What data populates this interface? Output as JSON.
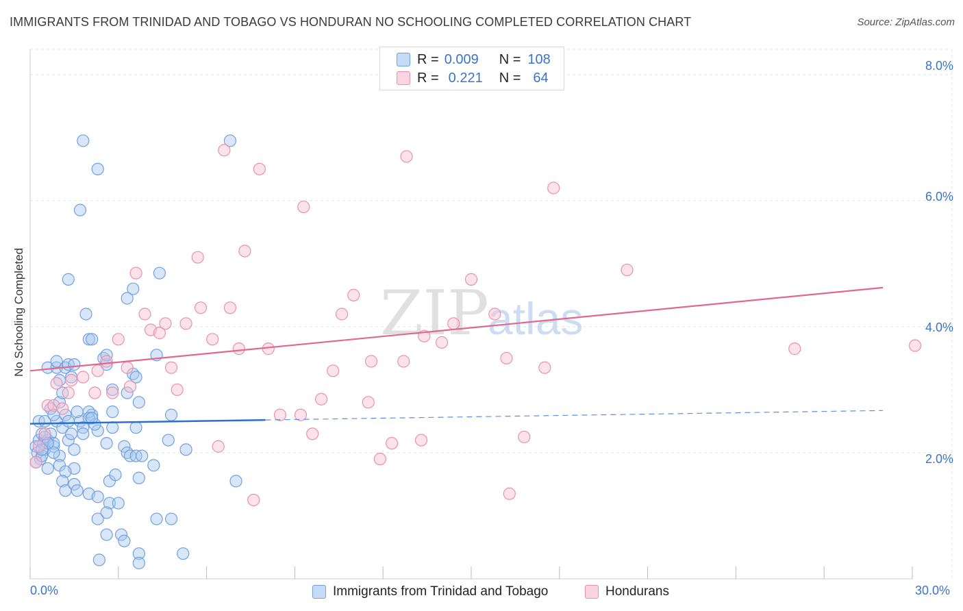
{
  "title": "IMMIGRANTS FROM TRINIDAD AND TOBAGO VS HONDURAN NO SCHOOLING COMPLETED CORRELATION CHART",
  "source": "Source: ZipAtlas.com",
  "watermark": {
    "zip": "ZIP",
    "atlas": "atlas"
  },
  "legend": {
    "rows": [
      {
        "r_label": "R =",
        "r_value": "0.009",
        "n_label": "N =",
        "n_value": "108",
        "color": "#a8c8f0",
        "stroke": "#6fa0e0"
      },
      {
        "r_label": "R =",
        "r_value": "0.221",
        "n_label": "N =",
        "n_value": "64",
        "color": "#f8c0d2",
        "stroke": "#e890b0"
      }
    ]
  },
  "bottom_legend": [
    {
      "label": "Immigrants from Trinidad and Tobago",
      "color": "#a8c8f0",
      "stroke": "#6fa0e0"
    },
    {
      "label": "Hondurans",
      "color": "#f8c0d2",
      "stroke": "#e890b0"
    }
  ],
  "axis_labels": {
    "x_min": "0.0%",
    "x_max": "30.0%",
    "y_ticks": [
      "2.0%",
      "4.0%",
      "6.0%",
      "8.0%"
    ]
  },
  "chart_data": {
    "type": "scatter",
    "title": "IMMIGRANTS FROM TRINIDAD AND TOBAGO VS HONDURAN NO SCHOOLING COMPLETED CORRELATION CHART",
    "xlabel": "",
    "ylabel": "No Schooling Completed",
    "xlim": [
      0,
      30
    ],
    "ylim": [
      0,
      8.4
    ],
    "x_unit": "%",
    "y_unit": "%",
    "grid": true,
    "legend_position": "top-center",
    "series": [
      {
        "name": "Immigrants from Trinidad and Tobago",
        "color": "#6fa0e0",
        "fill": "#a8c8f0",
        "trend": {
          "x": [
            0.0,
            8.0
          ],
          "y": [
            2.46,
            2.52
          ],
          "dashed_extension": {
            "x": [
              8.0,
              29.0
            ],
            "y": [
              2.52,
              2.67
            ]
          }
        },
        "points": [
          [
            0.2,
            2.1
          ],
          [
            0.25,
            2.0
          ],
          [
            0.3,
            2.2
          ],
          [
            0.35,
            1.9
          ],
          [
            0.4,
            2.3
          ],
          [
            0.45,
            2.15
          ],
          [
            0.5,
            2.05
          ],
          [
            0.3,
            2.5
          ],
          [
            0.5,
            2.5
          ],
          [
            0.6,
            2.2
          ],
          [
            0.7,
            2.3
          ],
          [
            0.8,
            2.1
          ],
          [
            0.9,
            2.5
          ],
          [
            0.7,
            2.7
          ],
          [
            0.8,
            2.6
          ],
          [
            1.0,
            2.8
          ],
          [
            1.1,
            2.4
          ],
          [
            1.2,
            2.6
          ],
          [
            1.3,
            2.5
          ],
          [
            0.6,
            3.35
          ],
          [
            0.9,
            3.35
          ],
          [
            0.9,
            3.45
          ],
          [
            1.2,
            3.35
          ],
          [
            1.3,
            3.4
          ],
          [
            1.5,
            3.4
          ],
          [
            1.4,
            3.2
          ],
          [
            1.0,
            3.15
          ],
          [
            1.1,
            2.95
          ],
          [
            0.8,
            2.15
          ],
          [
            1.3,
            2.2
          ],
          [
            1.5,
            2.05
          ],
          [
            1.0,
            1.95
          ],
          [
            0.6,
            1.75
          ],
          [
            1.0,
            1.8
          ],
          [
            1.5,
            1.75
          ],
          [
            1.2,
            1.7
          ],
          [
            1.1,
            1.55
          ],
          [
            1.2,
            1.4
          ],
          [
            1.5,
            1.5
          ],
          [
            1.6,
            1.4
          ],
          [
            2.0,
            1.35
          ],
          [
            2.3,
            1.3
          ],
          [
            2.3,
            2.35
          ],
          [
            2.1,
            2.6
          ],
          [
            2.0,
            2.65
          ],
          [
            2.2,
            2.45
          ],
          [
            1.7,
            2.5
          ],
          [
            1.8,
            2.4
          ],
          [
            1.8,
            2.3
          ],
          [
            2.0,
            2.55
          ],
          [
            2.6,
            2.15
          ],
          [
            2.8,
            2.65
          ],
          [
            2.8,
            2.4
          ],
          [
            2.7,
            1.55
          ],
          [
            2.9,
            1.65
          ],
          [
            3.2,
            2.1
          ],
          [
            3.3,
            2.0
          ],
          [
            3.4,
            1.95
          ],
          [
            3.6,
            1.95
          ],
          [
            3.8,
            1.95
          ],
          [
            3.7,
            1.6
          ],
          [
            4.2,
            1.8
          ],
          [
            3.3,
            2.95
          ],
          [
            3.5,
            3.25
          ],
          [
            3.6,
            3.2
          ],
          [
            3.7,
            2.8
          ],
          [
            3.6,
            2.4
          ],
          [
            3.5,
            4.6
          ],
          [
            3.3,
            4.45
          ],
          [
            4.4,
            4.85
          ],
          [
            4.3,
            3.55
          ],
          [
            4.7,
            2.2
          ],
          [
            4.8,
            2.6
          ],
          [
            2.0,
            3.8
          ],
          [
            2.1,
            3.8
          ],
          [
            1.9,
            4.2
          ],
          [
            2.5,
            3.5
          ],
          [
            2.6,
            3.4
          ],
          [
            2.6,
            3.55
          ],
          [
            2.8,
            3.0
          ],
          [
            1.3,
            4.75
          ],
          [
            1.7,
            5.85
          ],
          [
            1.8,
            6.95
          ],
          [
            2.3,
            6.5
          ],
          [
            6.8,
            6.95
          ],
          [
            7.0,
            1.55
          ],
          [
            2.7,
            1.2
          ],
          [
            3.0,
            1.2
          ],
          [
            2.6,
            1.05
          ],
          [
            2.3,
            0.95
          ],
          [
            2.6,
            0.7
          ],
          [
            3.1,
            0.7
          ],
          [
            3.2,
            0.6
          ],
          [
            3.7,
            0.4
          ],
          [
            3.7,
            0.25
          ],
          [
            4.3,
            0.95
          ],
          [
            4.8,
            0.95
          ],
          [
            5.2,
            0.4
          ],
          [
            5.3,
            2.05
          ],
          [
            2.35,
            0.3
          ],
          [
            0.2,
            1.85
          ],
          [
            0.4,
            1.95
          ],
          [
            0.5,
            2.25
          ],
          [
            0.6,
            2.15
          ],
          [
            0.4,
            2.05
          ],
          [
            0.8,
            2.0
          ],
          [
            1.4,
            2.3
          ],
          [
            1.6,
            2.65
          ],
          [
            2.1,
            2.55
          ]
        ]
      },
      {
        "name": "Hondurans",
        "color": "#e890b0",
        "fill": "#f8c0d2",
        "trend": {
          "x": [
            0.0,
            29.0
          ],
          "y": [
            3.3,
            4.62
          ]
        },
        "points": [
          [
            0.2,
            1.85
          ],
          [
            0.3,
            2.1
          ],
          [
            0.5,
            2.3
          ],
          [
            0.6,
            2.75
          ],
          [
            0.8,
            2.75
          ],
          [
            0.9,
            3.1
          ],
          [
            1.1,
            2.7
          ],
          [
            1.3,
            2.95
          ],
          [
            1.4,
            3.15
          ],
          [
            1.8,
            3.2
          ],
          [
            2.2,
            2.95
          ],
          [
            2.3,
            3.3
          ],
          [
            2.6,
            3.45
          ],
          [
            2.8,
            2.95
          ],
          [
            3.0,
            3.8
          ],
          [
            3.3,
            3.35
          ],
          [
            3.4,
            3.05
          ],
          [
            3.6,
            4.85
          ],
          [
            3.9,
            4.2
          ],
          [
            4.1,
            3.95
          ],
          [
            4.4,
            3.9
          ],
          [
            4.6,
            4.05
          ],
          [
            4.8,
            3.35
          ],
          [
            5.0,
            3.0
          ],
          [
            5.3,
            4.05
          ],
          [
            5.7,
            5.1
          ],
          [
            5.8,
            4.3
          ],
          [
            6.2,
            3.8
          ],
          [
            6.4,
            2.1
          ],
          [
            6.6,
            6.8
          ],
          [
            6.8,
            4.3
          ],
          [
            7.1,
            3.65
          ],
          [
            7.3,
            5.2
          ],
          [
            7.6,
            1.25
          ],
          [
            7.8,
            6.5
          ],
          [
            8.1,
            3.65
          ],
          [
            8.5,
            2.6
          ],
          [
            9.2,
            2.6
          ],
          [
            9.3,
            5.9
          ],
          [
            9.6,
            2.3
          ],
          [
            9.9,
            2.85
          ],
          [
            10.3,
            3.3
          ],
          [
            10.6,
            4.2
          ],
          [
            11.0,
            4.5
          ],
          [
            11.5,
            2.8
          ],
          [
            11.6,
            3.45
          ],
          [
            11.9,
            1.9
          ],
          [
            12.3,
            2.15
          ],
          [
            12.7,
            3.45
          ],
          [
            12.8,
            6.7
          ],
          [
            13.3,
            2.2
          ],
          [
            13.4,
            3.85
          ],
          [
            14.0,
            3.75
          ],
          [
            14.4,
            4.05
          ],
          [
            15.0,
            4.75
          ],
          [
            15.8,
            4.2
          ],
          [
            16.2,
            3.5
          ],
          [
            16.3,
            1.35
          ],
          [
            16.8,
            2.25
          ],
          [
            17.5,
            3.35
          ],
          [
            17.8,
            6.2
          ],
          [
            20.3,
            4.9
          ],
          [
            26.0,
            3.65
          ],
          [
            31.5,
            3.7
          ]
        ]
      }
    ]
  }
}
